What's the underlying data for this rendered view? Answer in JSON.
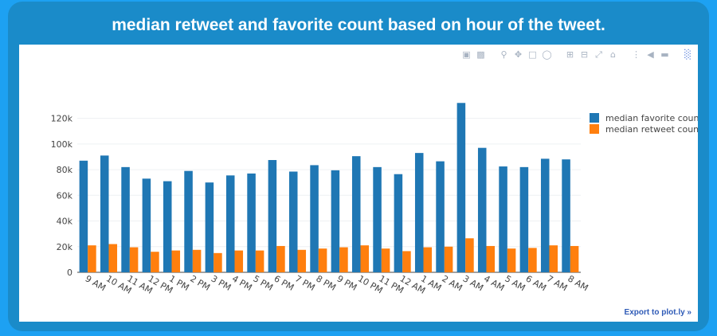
{
  "page": {
    "title": "median retweet and favorite count based on hour of the tweet.",
    "export_label": "Export to plot.ly »"
  },
  "modebar": {
    "icons": [
      "camera-icon",
      "save-icon",
      "zoom-icon",
      "pan-icon",
      "box-select-icon",
      "lasso-icon",
      "zoom-in-icon",
      "zoom-out-icon",
      "autoscale-icon",
      "home-icon",
      "spike-lines-icon",
      "hover-closest-icon",
      "hover-compare-icon",
      "plotly-logo-icon"
    ]
  },
  "colors": {
    "favorite": "#1f77b4",
    "retweet": "#ff7f0e",
    "grid": "#eef0f3",
    "axis_text": "#444444"
  },
  "chart_data": {
    "type": "bar",
    "title": "median retweet and favorite count based on hour of the tweet.",
    "xlabel": "",
    "ylabel": "",
    "categories": [
      "9 AM",
      "10 AM",
      "11 AM",
      "12 PM",
      "1 PM",
      "2 PM",
      "3 PM",
      "4 PM",
      "5 PM",
      "6 PM",
      "7 PM",
      "8 PM",
      "9 PM",
      "10 PM",
      "11 PM",
      "12 AM",
      "1 AM",
      "2 AM",
      "3 AM",
      "4 AM",
      "5 AM",
      "6 AM",
      "7 AM",
      "8 AM"
    ],
    "series": [
      {
        "name": "median favorite count",
        "values": [
          87000,
          91000,
          82000,
          73000,
          71000,
          79000,
          70000,
          75500,
          77000,
          87500,
          78500,
          83500,
          79500,
          90500,
          82000,
          76500,
          93000,
          86500,
          132000,
          97000,
          82500,
          82000,
          88500,
          88000
        ]
      },
      {
        "name": "median retweet count",
        "values": [
          21000,
          22000,
          19500,
          16000,
          17000,
          17500,
          15000,
          17000,
          17000,
          20500,
          17500,
          18500,
          19500,
          21000,
          18500,
          16500,
          19500,
          20000,
          26500,
          20500,
          18500,
          19000,
          21000,
          20500
        ]
      }
    ],
    "yticks": [
      0,
      20000,
      40000,
      60000,
      80000,
      100000,
      120000
    ],
    "ytick_labels": [
      "0",
      "20k",
      "40k",
      "60k",
      "80k",
      "100k",
      "120k"
    ],
    "ylim": [
      0,
      139000
    ],
    "grid": true,
    "legend_position": "right"
  }
}
